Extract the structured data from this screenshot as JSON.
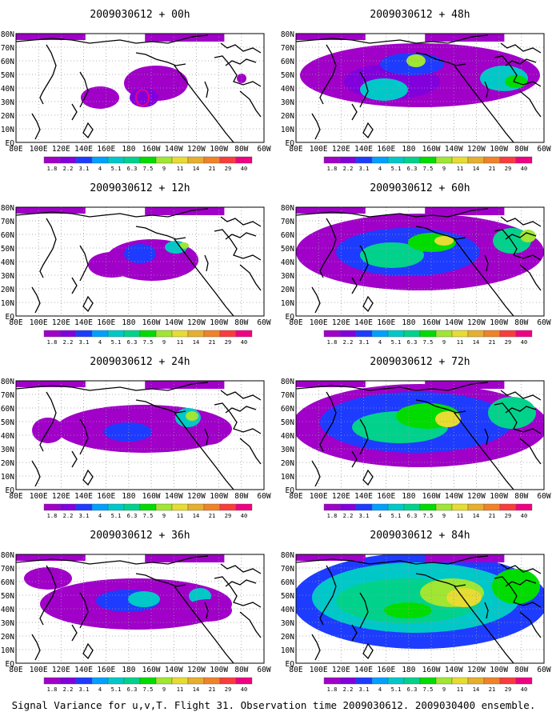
{
  "figure": {
    "caption": "Signal Variance for u,v,T. Flight 31. Observation time 2009030612. 2009030400 ensemble."
  },
  "colorbar": {
    "labels": [
      "1.8",
      "2.2",
      "3.1",
      "4",
      "5.1",
      "6.3",
      "7.5",
      "9",
      "11",
      "14",
      "21",
      "29",
      "40"
    ],
    "colors": [
      "#a000c8",
      "#8200dc",
      "#1e3cff",
      "#00a0ff",
      "#00c8c8",
      "#00d28c",
      "#00dc00",
      "#a0e632",
      "#e6dc32",
      "#e6af2d",
      "#f08228",
      "#fa3c3c",
      "#f00082"
    ]
  },
  "axes": {
    "x_ticks": [
      "80E",
      "100E",
      "120E",
      "140E",
      "160E",
      "180",
      "160W",
      "140W",
      "120W",
      "100W",
      "80W",
      "60W"
    ],
    "y_ticks_left": [
      "80N",
      "70N",
      "60N",
      "50N",
      "40N",
      "30N",
      "20N",
      "10N",
      "EQ"
    ],
    "y_ticks_right_col": [
      "80N",
      "70N",
      "60N",
      "50N",
      "40N",
      "30N",
      "20N",
      "10N",
      "EQ"
    ]
  },
  "panels": [
    {
      "id": "p00",
      "title": "2009030612 + 00h",
      "level": 0
    },
    {
      "id": "p12",
      "title": "2009030612 + 12h",
      "level": 1
    },
    {
      "id": "p24",
      "title": "2009030612 + 24h",
      "level": 2
    },
    {
      "id": "p36",
      "title": "2009030612 + 36h",
      "level": 3
    },
    {
      "id": "p48",
      "title": "2009030612 + 48h",
      "level": 4
    },
    {
      "id": "p60",
      "title": "2009030612 + 60h",
      "level": 5
    },
    {
      "id": "p72",
      "title": "2009030612 + 72h",
      "level": 6
    },
    {
      "id": "p84",
      "title": "2009030612 + 84h",
      "level": 7
    }
  ]
}
